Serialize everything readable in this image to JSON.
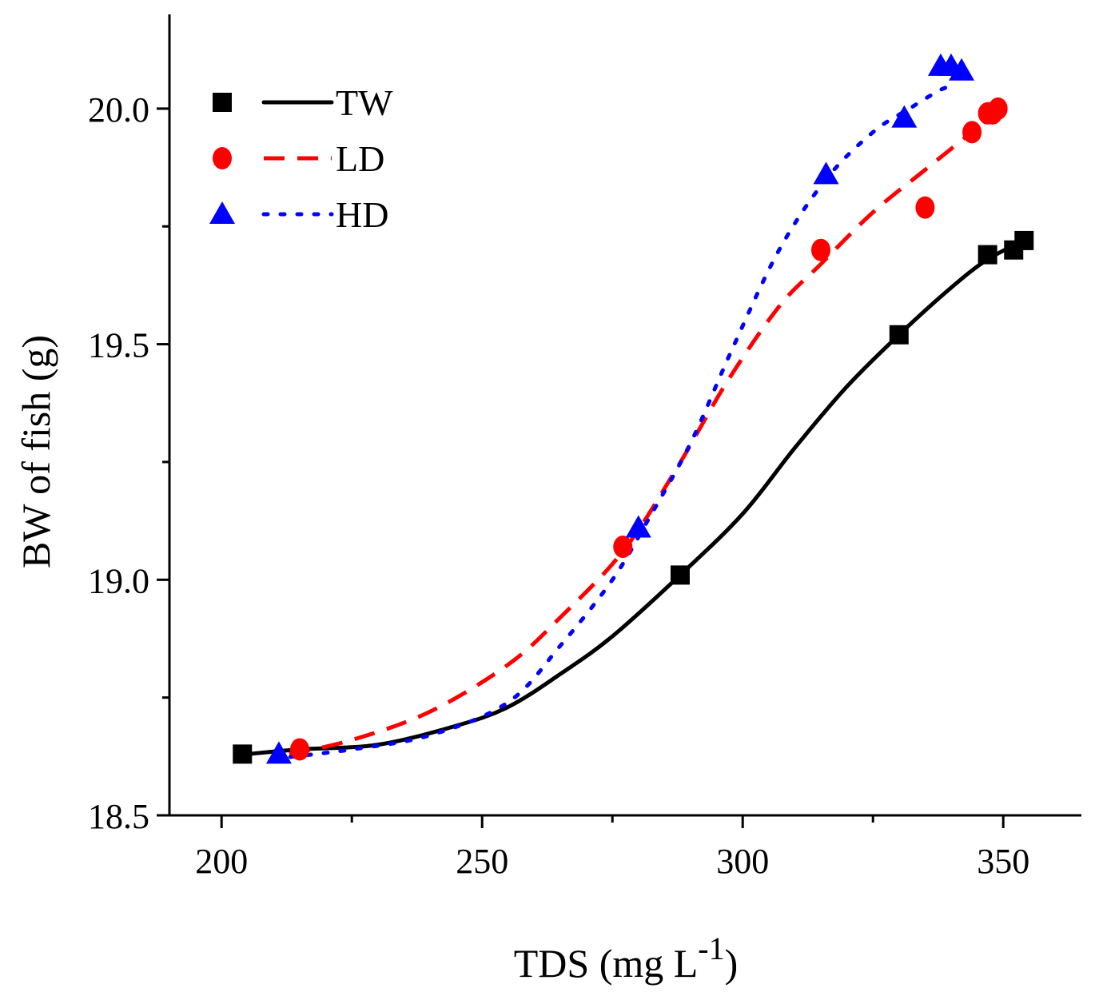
{
  "chart_data": {
    "type": "line",
    "title": "",
    "xlabel": "TDS (mg L",
    "xlabel_sup": "-1",
    "xlabel_end": ")",
    "ylabel": "BW of fish (g)",
    "xlim": [
      190,
      365
    ],
    "ylim": [
      18.5,
      20.2
    ],
    "x_ticks": [
      200,
      250,
      300,
      350
    ],
    "x_tick_labels": [
      "200",
      "250",
      "300",
      "350"
    ],
    "x_minor_ticks": [
      225,
      275,
      325
    ],
    "y_ticks": [
      18.5,
      19.0,
      19.5,
      20.0
    ],
    "y_tick_labels": [
      "18.5",
      "19.0",
      "19.5",
      "20.0"
    ],
    "y_minor_ticks": [
      18.75,
      19.25,
      19.75
    ],
    "grid": false,
    "legend_position": "top-left",
    "series": [
      {
        "name": "TW",
        "marker": "square",
        "line": "solid",
        "color": "#000000",
        "points": [
          [
            204,
            18.63
          ],
          [
            288,
            19.01
          ],
          [
            330,
            19.52
          ],
          [
            347,
            19.69
          ],
          [
            352,
            19.7
          ],
          [
            354,
            19.72
          ]
        ],
        "curve": [
          [
            205,
            18.63
          ],
          [
            215,
            18.64
          ],
          [
            230,
            18.65
          ],
          [
            245,
            18.69
          ],
          [
            255,
            18.73
          ],
          [
            265,
            18.8
          ],
          [
            275,
            18.88
          ],
          [
            288,
            19.01
          ],
          [
            300,
            19.14
          ],
          [
            310,
            19.28
          ],
          [
            320,
            19.41
          ],
          [
            330,
            19.52
          ],
          [
            340,
            19.62
          ],
          [
            347,
            19.68
          ],
          [
            354,
            19.72
          ]
        ]
      },
      {
        "name": "LD",
        "marker": "circle",
        "line": "dashed",
        "color": "#ff0000",
        "points": [
          [
            215,
            18.64
          ],
          [
            277,
            19.07
          ],
          [
            315,
            19.7
          ],
          [
            335,
            19.79
          ],
          [
            344,
            19.95
          ],
          [
            347,
            19.99
          ],
          [
            348,
            19.99
          ],
          [
            349,
            20.0
          ]
        ],
        "curve": [
          [
            213,
            18.63
          ],
          [
            225,
            18.66
          ],
          [
            240,
            18.72
          ],
          [
            255,
            18.82
          ],
          [
            265,
            18.92
          ],
          [
            277,
            19.06
          ],
          [
            287,
            19.23
          ],
          [
            297,
            19.42
          ],
          [
            307,
            19.58
          ],
          [
            315,
            19.67
          ],
          [
            325,
            19.78
          ],
          [
            335,
            19.87
          ],
          [
            344,
            19.95
          ],
          [
            350,
            20.0
          ]
        ]
      },
      {
        "name": "HD",
        "marker": "triangle",
        "line": "dotted",
        "color": "#0000ff",
        "points": [
          [
            211,
            18.63
          ],
          [
            280,
            19.11
          ],
          [
            316,
            19.86
          ],
          [
            331,
            19.98
          ],
          [
            338,
            20.09
          ],
          [
            340,
            20.09
          ],
          [
            342,
            20.08
          ]
        ],
        "curve": [
          [
            210,
            18.62
          ],
          [
            225,
            18.64
          ],
          [
            240,
            18.67
          ],
          [
            255,
            18.74
          ],
          [
            265,
            18.86
          ],
          [
            275,
            19.0
          ],
          [
            282,
            19.13
          ],
          [
            290,
            19.29
          ],
          [
            298,
            19.49
          ],
          [
            307,
            19.7
          ],
          [
            316,
            19.85
          ],
          [
            325,
            19.95
          ],
          [
            332,
            20.0
          ],
          [
            338,
            20.04
          ],
          [
            341,
            20.05
          ]
        ]
      }
    ]
  }
}
